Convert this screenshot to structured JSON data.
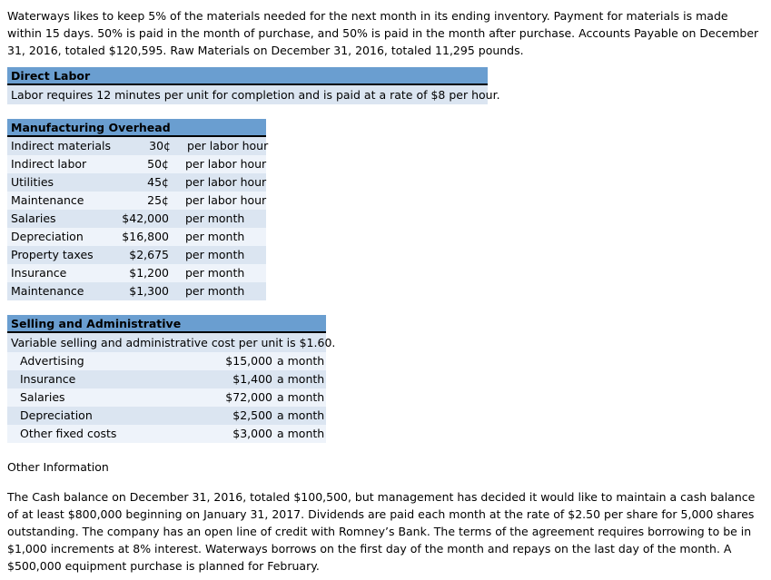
{
  "intro_paragraph": "Waterways likes to keep 5% of the materials needed for the next month in its ending inventory. Payment for materials is made within 15 days. 50% is paid in the month of purchase, and 50% is paid in the month after purchase. Accounts Payable on December 31, 2016, totaled $120,595. Raw Materials on December 31, 2016, totaled 11,295 pounds.",
  "direct_labor": {
    "title": "Direct Labor",
    "body": "Labor requires 12 minutes per unit for completion and is paid at a rate of $8 per hour."
  },
  "manufacturing_overhead": {
    "title": "Manufacturing Overhead",
    "rows": [
      {
        "label": "Indirect materials",
        "value": "30¢",
        "unit": "per labor hour"
      },
      {
        "label": "Indirect labor",
        "value": "50¢",
        "unit": "per labor hour"
      },
      {
        "label": "Utilities",
        "value": "45¢",
        "unit": "per labor hour"
      },
      {
        "label": "Maintenance",
        "value": "25¢",
        "unit": "per labor hour"
      },
      {
        "label": "Salaries",
        "value": "$42,000",
        "unit": "per month"
      },
      {
        "label": "Depreciation",
        "value": "$16,800",
        "unit": "per month"
      },
      {
        "label": "Property taxes",
        "value": "$2,675",
        "unit": "per month"
      },
      {
        "label": "Insurance",
        "value": "$1,200",
        "unit": "per month"
      },
      {
        "label": "Maintenance",
        "value": "$1,300",
        "unit": "per month"
      }
    ]
  },
  "selling_admin": {
    "title": "Selling and Administrative",
    "note": "Variable selling and administrative cost per unit is $1.60.",
    "rows": [
      {
        "label": "Advertising",
        "value": "$15,000",
        "unit": "a month"
      },
      {
        "label": "Insurance",
        "value": "$1,400",
        "unit": "a month"
      },
      {
        "label": "Salaries",
        "value": "$72,000",
        "unit": "a month"
      },
      {
        "label": "Depreciation",
        "value": "$2,500",
        "unit": "a month"
      },
      {
        "label": "Other fixed costs",
        "value": "$3,000",
        "unit": "a month"
      }
    ]
  },
  "other_information": {
    "heading": "Other Information",
    "paragraph": "The Cash balance on December 31, 2016, totaled $100,500, but management has decided it would like to maintain a cash balance of at least $800,000 beginning on January 31, 2017. Dividends are paid each month at the rate of $2.50 per share for 5,000 shares outstanding. The company has an open line of credit with Romney’s Bank. The terms of the agreement requires borrowing to be in $1,000 increments at 8% interest. Waterways borrows on the first day of the month and repays on the last day of the month. A $500,000 equipment purchase is planned for February."
  },
  "colors": {
    "header_blue": "#6a9ed0",
    "row_blue": "#dbe5f1",
    "row_light": "#eef3fa",
    "header_divider": "#000000",
    "text": "#000000",
    "background": "#ffffff"
  }
}
